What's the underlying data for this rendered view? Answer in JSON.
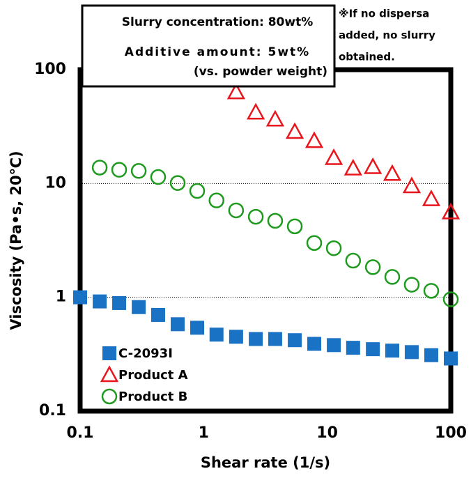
{
  "chart_data": {
    "type": "scatter",
    "title_lines": [
      "Slurry concentration: 80wt%",
      "Additive amount: 5wt%",
      "(vs. powder weight)"
    ],
    "annotation_lines": [
      "※If no dispersa",
      "added, no slurry",
      "obtained."
    ],
    "x_label": "Shear rate (1/s)",
    "y_label": "Viscosity (Pa•s, 20℃)",
    "log_x": true,
    "log_y": true,
    "xlim": [
      0.1,
      100
    ],
    "ylim": [
      0.1,
      100
    ],
    "xticks": [
      0.1,
      1,
      10,
      100
    ],
    "yticks": [
      0.1,
      1,
      10,
      100
    ],
    "grid": true,
    "legend": "lower left",
    "x": [
      0.1,
      0.144,
      0.207,
      0.298,
      0.428,
      0.616,
      0.886,
      1.27,
      1.83,
      2.64,
      3.79,
      5.46,
      7.85,
      11.3,
      16.2,
      23.4,
      33.6,
      48.3,
      69.5,
      100
    ],
    "series": [
      {
        "name": "C-2093I",
        "color": "#1a72c4",
        "marker": "square",
        "values": [
          1.0,
          0.92,
          0.89,
          0.82,
          0.7,
          0.58,
          0.54,
          0.47,
          0.45,
          0.43,
          0.43,
          0.42,
          0.39,
          0.38,
          0.36,
          0.35,
          0.34,
          0.33,
          0.31,
          0.29
        ]
      },
      {
        "name": "Product A",
        "color": "#e8161c",
        "marker": "triangle",
        "values": [
          null,
          null,
          null,
          null,
          null,
          null,
          null,
          null,
          63.6,
          42.2,
          36.6,
          28.5,
          23.7,
          16.8,
          13.6,
          14.0,
          12.2,
          9.5,
          7.3,
          5.6
        ]
      },
      {
        "name": "Product B",
        "color": "#1e9a1e",
        "marker": "circle",
        "values": [
          null,
          13.8,
          13.2,
          12.9,
          11.4,
          10.1,
          8.6,
          7.1,
          5.8,
          5.1,
          4.7,
          4.2,
          3.0,
          2.7,
          2.1,
          1.84,
          1.51,
          1.29,
          1.14,
          0.96
        ]
      }
    ]
  }
}
